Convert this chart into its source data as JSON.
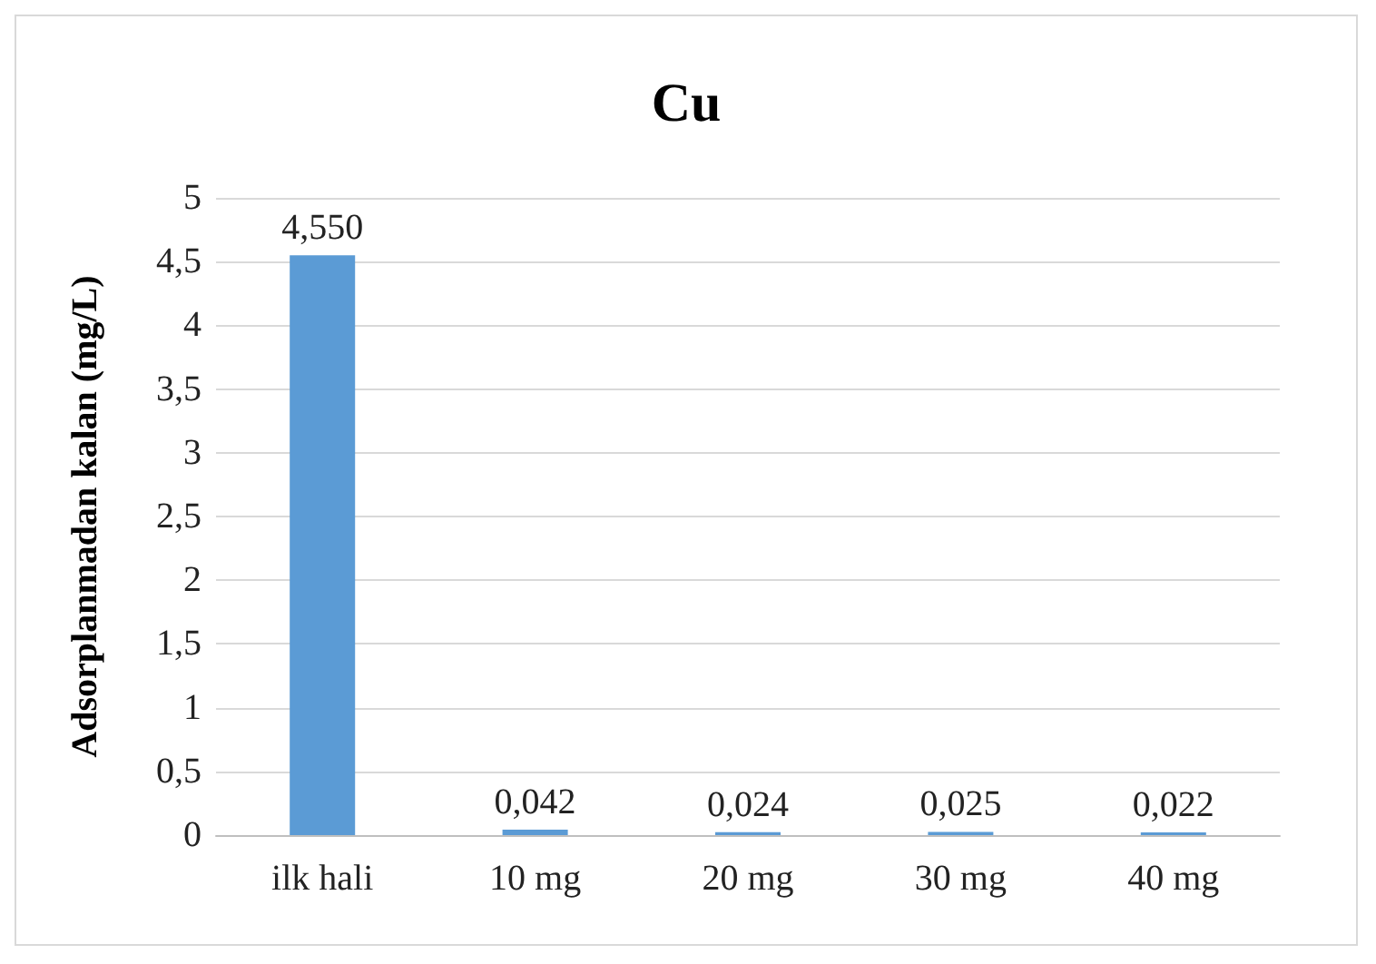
{
  "chart_data": {
    "type": "bar",
    "title": "Cu",
    "ylabel": "Adsorplanmadan kalan (mg/L)",
    "categories": [
      "ilk hali",
      "10 mg",
      "20 mg",
      "30 mg",
      "40 mg"
    ],
    "values": [
      4.55,
      0.042,
      0.024,
      0.025,
      0.022
    ],
    "value_labels": [
      "4,550",
      "0,042",
      "0,024",
      "0,025",
      "0,022"
    ],
    "color": "#5b9bd5",
    "ylim": [
      0,
      5
    ],
    "yticks": [
      0,
      {
        "value": 0.5,
        "label": "0,5"
      },
      1,
      {
        "value": 1.5,
        "label": "1,5"
      },
      2,
      {
        "value": 2.5,
        "label": "2,5"
      },
      3,
      {
        "value": 3.5,
        "label": "3,5"
      },
      4,
      {
        "value": 4.5,
        "label": "4,5"
      },
      5
    ],
    "grid": "y"
  }
}
